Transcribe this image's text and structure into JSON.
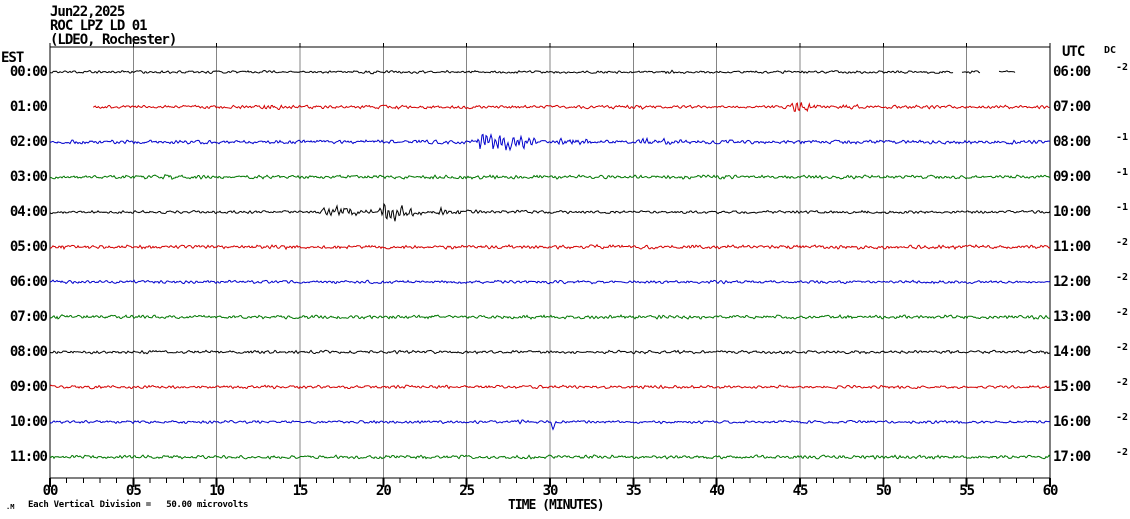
{
  "header": {
    "date": "Jun22,2025",
    "station": "ROC LPZ LD 01",
    "network": "(LDEO, Rochester)"
  },
  "axes": {
    "left_header": "EST",
    "right_header": "UTC",
    "dc_header": "DC",
    "x_title": "TIME (MINUTES)",
    "x_tick_labels": [
      "00",
      "05",
      "10",
      "15",
      "20",
      "25",
      "30",
      "35",
      "40",
      "45",
      "50",
      "55",
      "60"
    ],
    "minor_ticks_per_minute": 1
  },
  "footer": {
    "scale_note": "Each Vertical Division =   50.00 microvolts",
    "tiny_mark": ".M"
  },
  "chart_data": {
    "type": "line",
    "subtype": "helicorder-seismogram",
    "title": "ROC LPZ LD 01 (LDEO, Rochester) Jun22,2025",
    "xlabel": "TIME (MINUTES)",
    "x_range": [
      0,
      60
    ],
    "x_major_step_min": 5,
    "grid": true,
    "colors": {
      "black": "#000000",
      "red": "#d40000",
      "blue": "#0000cc",
      "green": "#007700",
      "grid": "#858585"
    },
    "rows": [
      {
        "est": "00:00",
        "utc": "06:00",
        "dc": "-2",
        "color": "black",
        "start_min": 0,
        "end_min": 57.9,
        "gaps": [
          [
            54.2,
            54.7
          ],
          [
            55.8,
            56.9
          ]
        ],
        "noise_amp": 1.6,
        "events": [
          {
            "start": 19,
            "end": 20.6,
            "amp": 2.6
          },
          {
            "start": 36.8,
            "end": 38.4,
            "amp": 2.6
          }
        ],
        "spikes": []
      },
      {
        "est": "01:00",
        "utc": "07:00",
        "dc": "",
        "color": "red",
        "start_min": 2.6,
        "end_min": 60,
        "gaps": [],
        "noise_amp": 2.0,
        "events": [
          {
            "start": 12.4,
            "end": 15.2,
            "amp": 3.4
          },
          {
            "start": 20,
            "end": 24,
            "amp": 2.8
          },
          {
            "start": 34.8,
            "end": 37,
            "amp": 2.9
          },
          {
            "start": 44.2,
            "end": 46.6,
            "amp": 6.5
          },
          {
            "start": 46.8,
            "end": 52,
            "amp": 2.9
          }
        ],
        "spikes": []
      },
      {
        "est": "02:00",
        "utc": "08:00",
        "dc": "-1",
        "color": "blue",
        "start_min": 0,
        "end_min": 60,
        "gaps": [],
        "noise_amp": 2.2,
        "events": [
          {
            "start": 25.3,
            "end": 29.8,
            "amp": 11
          },
          {
            "start": 29.8,
            "end": 34,
            "amp": 4.5
          },
          {
            "start": 35,
            "end": 39,
            "amp": 5
          },
          {
            "start": 40,
            "end": 43.5,
            "amp": 3.5
          },
          {
            "start": 57,
            "end": 59.5,
            "amp": 3.4
          }
        ],
        "spikes": []
      },
      {
        "est": "03:00",
        "utc": "09:00",
        "dc": "-1",
        "color": "green",
        "start_min": 0,
        "end_min": 60,
        "gaps": [],
        "noise_amp": 2.2,
        "events": [
          {
            "start": 6.4,
            "end": 9.6,
            "amp": 3.5
          },
          {
            "start": 33,
            "end": 35,
            "amp": 2.8
          }
        ],
        "spikes": []
      },
      {
        "est": "04:00",
        "utc": "10:00",
        "dc": "-1",
        "color": "black",
        "start_min": 0,
        "end_min": 60,
        "gaps": [],
        "noise_amp": 1.8,
        "events": [
          {
            "start": 16,
            "end": 19.6,
            "amp": 8
          },
          {
            "start": 19.6,
            "end": 22.6,
            "amp": 9
          },
          {
            "start": 22.6,
            "end": 27,
            "amp": 4.2
          }
        ],
        "spikes": []
      },
      {
        "est": "05:00",
        "utc": "11:00",
        "dc": "-2",
        "color": "red",
        "start_min": 0,
        "end_min": 60,
        "gaps": [],
        "noise_amp": 2.3,
        "events": [
          {
            "start": 0,
            "end": 2,
            "amp": 4
          },
          {
            "start": 14,
            "end": 16,
            "amp": 2.9
          }
        ],
        "spikes": []
      },
      {
        "est": "06:00",
        "utc": "12:00",
        "dc": "-2",
        "color": "blue",
        "start_min": 0,
        "end_min": 60,
        "gaps": [],
        "noise_amp": 1.9,
        "events": [
          {
            "start": 0,
            "end": 1.2,
            "amp": 3.5
          }
        ],
        "spikes": []
      },
      {
        "est": "07:00",
        "utc": "13:00",
        "dc": "-2",
        "color": "green",
        "start_min": 0,
        "end_min": 60,
        "gaps": [],
        "noise_amp": 2.2,
        "events": [
          {
            "start": 0,
            "end": 2.5,
            "amp": 3.5
          }
        ],
        "spikes": []
      },
      {
        "est": "08:00",
        "utc": "14:00",
        "dc": "-2",
        "color": "black",
        "start_min": 0,
        "end_min": 60,
        "gaps": [],
        "noise_amp": 1.9,
        "events": [
          {
            "start": 2,
            "end": 5,
            "amp": 2.4
          }
        ],
        "spikes": []
      },
      {
        "est": "09:00",
        "utc": "15:00",
        "dc": "-2",
        "color": "red",
        "start_min": 0,
        "end_min": 60,
        "gaps": [],
        "noise_amp": 1.9,
        "events": [
          {
            "start": 21,
            "end": 23,
            "amp": 2.4
          }
        ],
        "spikes": []
      },
      {
        "est": "10:00",
        "utc": "16:00",
        "dc": "-2",
        "color": "blue",
        "start_min": 0,
        "end_min": 60,
        "gaps": [],
        "noise_amp": 1.7,
        "events": [
          {
            "start": 27.8,
            "end": 29.6,
            "amp": 3
          }
        ],
        "spikes": [
          {
            "min": 30.2,
            "amp": 7,
            "dir": "down"
          }
        ]
      },
      {
        "est": "11:00",
        "utc": "17:00",
        "dc": "-2",
        "color": "green",
        "start_min": 0,
        "end_min": 60,
        "gaps": [],
        "noise_amp": 2.1,
        "events": [
          {
            "start": 32,
            "end": 34.5,
            "amp": 2.9
          }
        ],
        "spikes": []
      }
    ]
  }
}
